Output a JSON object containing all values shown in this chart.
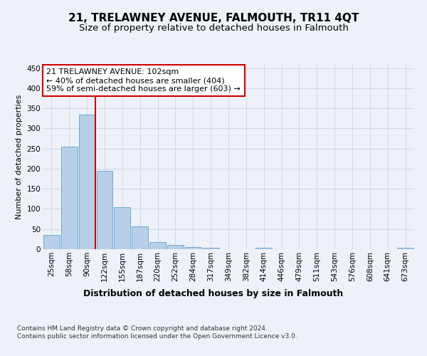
{
  "title": "21, TRELAWNEY AVENUE, FALMOUTH, TR11 4QT",
  "subtitle": "Size of property relative to detached houses in Falmouth",
  "xlabel": "Distribution of detached houses by size in Falmouth",
  "ylabel": "Number of detached properties",
  "categories": [
    "25sqm",
    "58sqm",
    "90sqm",
    "122sqm",
    "155sqm",
    "187sqm",
    "220sqm",
    "252sqm",
    "284sqm",
    "317sqm",
    "349sqm",
    "382sqm",
    "414sqm",
    "446sqm",
    "479sqm",
    "511sqm",
    "543sqm",
    "576sqm",
    "608sqm",
    "641sqm",
    "673sqm"
  ],
  "values": [
    35,
    255,
    335,
    195,
    105,
    57,
    17,
    10,
    5,
    4,
    0,
    0,
    3,
    0,
    0,
    0,
    0,
    0,
    0,
    0,
    3
  ],
  "bar_color": "#b8cfe8",
  "bar_edge_color": "#6aaad4",
  "vline_x_index": 2,
  "vline_color": "#cc0000",
  "annotation_text": "21 TRELAWNEY AVENUE: 102sqm\n← 40% of detached houses are smaller (404)\n59% of semi-detached houses are larger (603) →",
  "annotation_box_facecolor": "#ffffff",
  "annotation_box_edgecolor": "#cc0000",
  "ylim": [
    0,
    460
  ],
  "yticks": [
    0,
    50,
    100,
    150,
    200,
    250,
    300,
    350,
    400,
    450
  ],
  "footer_text": "Contains HM Land Registry data © Crown copyright and database right 2024.\nContains public sector information licensed under the Open Government Licence v3.0.",
  "background_color": "#eef2f8",
  "grid_color": "#d0d8e8",
  "title_fontsize": 11,
  "subtitle_fontsize": 9.5,
  "ylabel_fontsize": 8,
  "xlabel_fontsize": 9,
  "tick_fontsize": 7.5,
  "annotation_fontsize": 8,
  "footer_fontsize": 6.5
}
